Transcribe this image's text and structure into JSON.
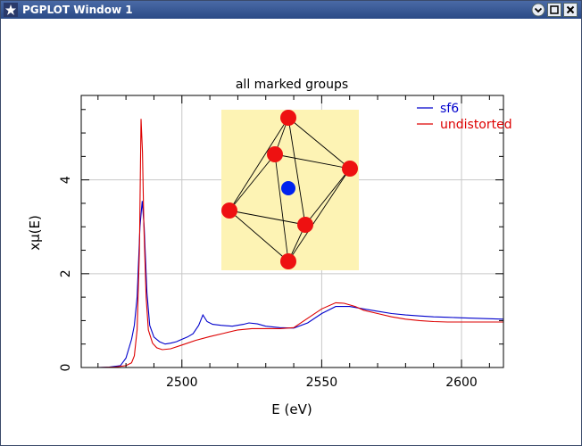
{
  "window": {
    "title": "PGPLOT Window 1",
    "icons": {
      "app": "star-icon",
      "menu": "chevron-down-icon",
      "maximize": "maximize-icon",
      "close": "close-icon"
    }
  },
  "chart_data": {
    "type": "line",
    "title": "all marked groups",
    "xlabel": "E (eV)",
    "ylabel": "xμ(E)",
    "xlim": [
      2464,
      2615
    ],
    "ylim": [
      0,
      5.8
    ],
    "xticks": [
      2500,
      2550,
      2600
    ],
    "yticks": [
      0,
      2,
      4
    ],
    "grid": true,
    "legend_position": "top-right",
    "series": [
      {
        "name": "sf6",
        "color": "#0000cc",
        "points": [
          [
            2464,
            0.0
          ],
          [
            2470,
            0.0
          ],
          [
            2474,
            0.01
          ],
          [
            2478,
            0.04
          ],
          [
            2480,
            0.2
          ],
          [
            2482,
            0.6
          ],
          [
            2483,
            0.9
          ],
          [
            2484,
            1.5
          ],
          [
            2485,
            3.0
          ],
          [
            2485.8,
            3.55
          ],
          [
            2486.5,
            3.0
          ],
          [
            2487.5,
            1.6
          ],
          [
            2488.5,
            0.9
          ],
          [
            2490,
            0.65
          ],
          [
            2492,
            0.55
          ],
          [
            2494,
            0.5
          ],
          [
            2496,
            0.52
          ],
          [
            2498,
            0.55
          ],
          [
            2500,
            0.6
          ],
          [
            2502,
            0.65
          ],
          [
            2504,
            0.72
          ],
          [
            2506,
            0.9
          ],
          [
            2507.5,
            1.12
          ],
          [
            2509,
            0.98
          ],
          [
            2511,
            0.92
          ],
          [
            2514,
            0.9
          ],
          [
            2518,
            0.88
          ],
          [
            2522,
            0.92
          ],
          [
            2524,
            0.95
          ],
          [
            2527,
            0.93
          ],
          [
            2530,
            0.88
          ],
          [
            2535,
            0.85
          ],
          [
            2540,
            0.84
          ],
          [
            2545,
            0.95
          ],
          [
            2550,
            1.15
          ],
          [
            2555,
            1.3
          ],
          [
            2560,
            1.3
          ],
          [
            2565,
            1.25
          ],
          [
            2570,
            1.2
          ],
          [
            2575,
            1.15
          ],
          [
            2580,
            1.12
          ],
          [
            2585,
            1.1
          ],
          [
            2590,
            1.08
          ],
          [
            2595,
            1.07
          ],
          [
            2600,
            1.06
          ],
          [
            2605,
            1.05
          ],
          [
            2610,
            1.04
          ],
          [
            2615,
            1.03
          ]
        ]
      },
      {
        "name": "undistorted",
        "color": "#dd0000",
        "points": [
          [
            2464,
            0.0
          ],
          [
            2470,
            0.0
          ],
          [
            2476,
            0.01
          ],
          [
            2480,
            0.04
          ],
          [
            2482,
            0.1
          ],
          [
            2483,
            0.25
          ],
          [
            2484,
            0.8
          ],
          [
            2484.8,
            2.5
          ],
          [
            2485.4,
            5.3
          ],
          [
            2485.9,
            4.6
          ],
          [
            2486.4,
            3.0
          ],
          [
            2487.2,
            1.5
          ],
          [
            2488,
            0.8
          ],
          [
            2489.5,
            0.52
          ],
          [
            2491,
            0.42
          ],
          [
            2493,
            0.38
          ],
          [
            2496,
            0.4
          ],
          [
            2500,
            0.48
          ],
          [
            2505,
            0.58
          ],
          [
            2510,
            0.66
          ],
          [
            2515,
            0.73
          ],
          [
            2520,
            0.8
          ],
          [
            2525,
            0.83
          ],
          [
            2530,
            0.83
          ],
          [
            2535,
            0.83
          ],
          [
            2540,
            0.85
          ],
          [
            2545,
            1.05
          ],
          [
            2550,
            1.25
          ],
          [
            2555,
            1.38
          ],
          [
            2558,
            1.37
          ],
          [
            2562,
            1.3
          ],
          [
            2565,
            1.22
          ],
          [
            2570,
            1.15
          ],
          [
            2575,
            1.08
          ],
          [
            2580,
            1.03
          ],
          [
            2585,
            1.0
          ],
          [
            2590,
            0.98
          ],
          [
            2595,
            0.97
          ],
          [
            2600,
            0.97
          ],
          [
            2605,
            0.97
          ],
          [
            2610,
            0.97
          ],
          [
            2615,
            0.97
          ]
        ]
      }
    ],
    "inset": {
      "description": "SF6 octahedral molecule",
      "background": "#fdf3b4",
      "center_color": "#0022ee",
      "outer_color": "#ee1111"
    }
  }
}
